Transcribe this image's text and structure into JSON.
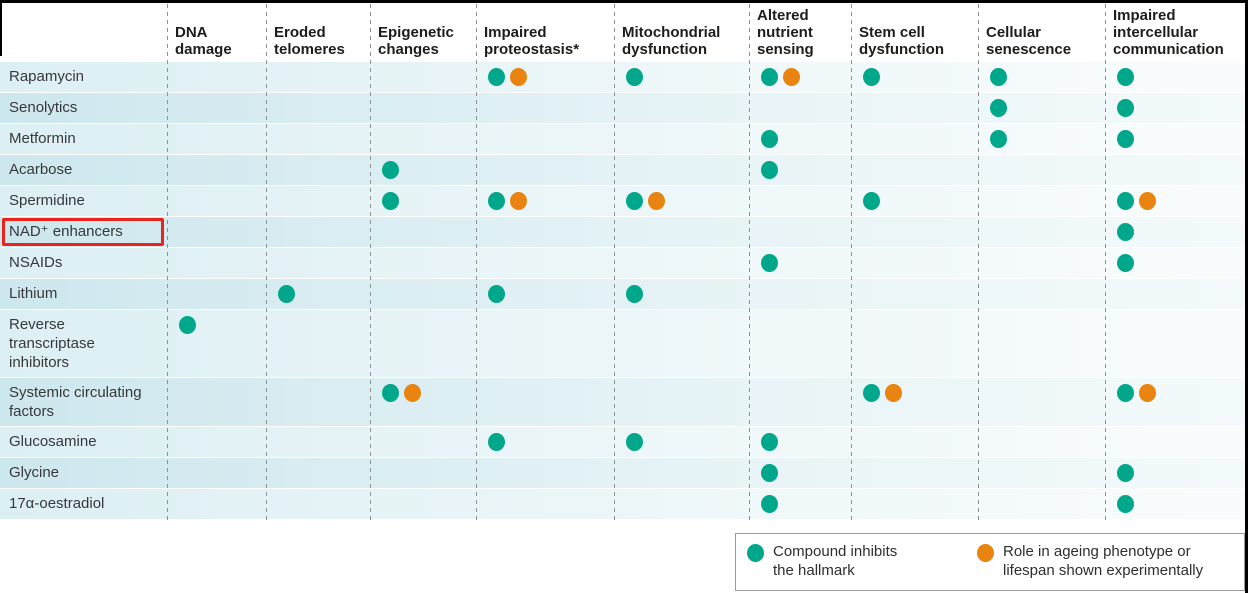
{
  "colors": {
    "inhibits_dot": "#00a78b",
    "experimental_dot": "#e8840f",
    "highlight_box": "#e8251d"
  },
  "legend": {
    "items": [
      {
        "name": "inhibits",
        "color": "#00a78b",
        "lines": [
          "Compound inhibits",
          "the hallmark"
        ]
      },
      {
        "name": "experimental",
        "color": "#e8840f",
        "lines": [
          "Role in ageing phenotype or",
          "lifespan shown experimentally"
        ]
      }
    ]
  },
  "chart_data": {
    "type": "table",
    "title": "",
    "description": "Dot matrix of compounds (rows) versus hallmarks of ageing (columns)",
    "marker_meanings": {
      "inhibits": "Compound inhibits the hallmark",
      "experimental": "Role in ageing phenotype or lifespan shown experimentally"
    },
    "columns": [
      "DNA damage",
      "Eroded telomeres",
      "Epigenetic changes",
      "Impaired proteostasis*",
      "Mitochondrial dysfunction",
      "Altered nutrient sensing",
      "Stem cell dysfunction",
      "Cellular senescence",
      "Impaired intercellular communication"
    ],
    "annotations": {
      "highlighted_row": "NAD⁺ enhancers",
      "highlight_style": "red box around row label"
    },
    "rows": [
      {
        "compound": "Rapamycin",
        "cells": {
          "Impaired proteostasis*": [
            "inhibits",
            "experimental"
          ],
          "Mitochondrial dysfunction": [
            "inhibits"
          ],
          "Altered nutrient sensing": [
            "inhibits",
            "experimental"
          ],
          "Stem cell dysfunction": [
            "inhibits"
          ],
          "Cellular senescence": [
            "inhibits"
          ],
          "Impaired intercellular communication": [
            "inhibits"
          ]
        }
      },
      {
        "compound": "Senolytics",
        "cells": {
          "Cellular senescence": [
            "inhibits"
          ],
          "Impaired intercellular communication": [
            "inhibits"
          ]
        }
      },
      {
        "compound": "Metformin",
        "cells": {
          "Altered nutrient sensing": [
            "inhibits"
          ],
          "Cellular senescence": [
            "inhibits"
          ],
          "Impaired intercellular communication": [
            "inhibits"
          ]
        }
      },
      {
        "compound": "Acarbose",
        "cells": {
          "Epigenetic changes": [
            "inhibits"
          ],
          "Altered nutrient sensing": [
            "inhibits"
          ]
        }
      },
      {
        "compound": "Spermidine",
        "cells": {
          "Epigenetic changes": [
            "inhibits"
          ],
          "Impaired proteostasis*": [
            "inhibits",
            "experimental"
          ],
          "Mitochondrial dysfunction": [
            "inhibits",
            "experimental"
          ],
          "Stem cell dysfunction": [
            "inhibits"
          ],
          "Impaired intercellular communication": [
            "inhibits",
            "experimental"
          ]
        }
      },
      {
        "compound": "NAD⁺ enhancers",
        "cells": {
          "Impaired intercellular communication": [
            "inhibits"
          ]
        }
      },
      {
        "compound": "NSAIDs",
        "cells": {
          "Altered nutrient sensing": [
            "inhibits"
          ],
          "Impaired intercellular communication": [
            "inhibits"
          ]
        }
      },
      {
        "compound": "Lithium",
        "cells": {
          "Eroded telomeres": [
            "inhibits"
          ],
          "Impaired proteostasis*": [
            "inhibits"
          ],
          "Mitochondrial dysfunction": [
            "inhibits"
          ]
        }
      },
      {
        "compound": "Reverse transcriptase inhibitors",
        "cells": {
          "DNA damage": [
            "inhibits"
          ]
        }
      },
      {
        "compound": "Systemic circulating factors",
        "cells": {
          "Epigenetic changes": [
            "inhibits",
            "experimental"
          ],
          "Stem cell dysfunction": [
            "inhibits",
            "experimental"
          ],
          "Impaired intercellular communication": [
            "inhibits",
            "experimental"
          ]
        }
      },
      {
        "compound": "Glucosamine",
        "cells": {
          "Impaired proteostasis*": [
            "inhibits"
          ],
          "Mitochondrial dysfunction": [
            "inhibits"
          ],
          "Altered nutrient sensing": [
            "inhibits"
          ]
        }
      },
      {
        "compound": "Glycine",
        "cells": {
          "Altered nutrient sensing": [
            "inhibits"
          ],
          "Impaired intercellular communication": [
            "inhibits"
          ]
        }
      },
      {
        "compound": "17α-oestradiol",
        "cells": {
          "Altered nutrient sensing": [
            "inhibits"
          ],
          "Impaired intercellular communication": [
            "inhibits"
          ]
        }
      }
    ]
  }
}
